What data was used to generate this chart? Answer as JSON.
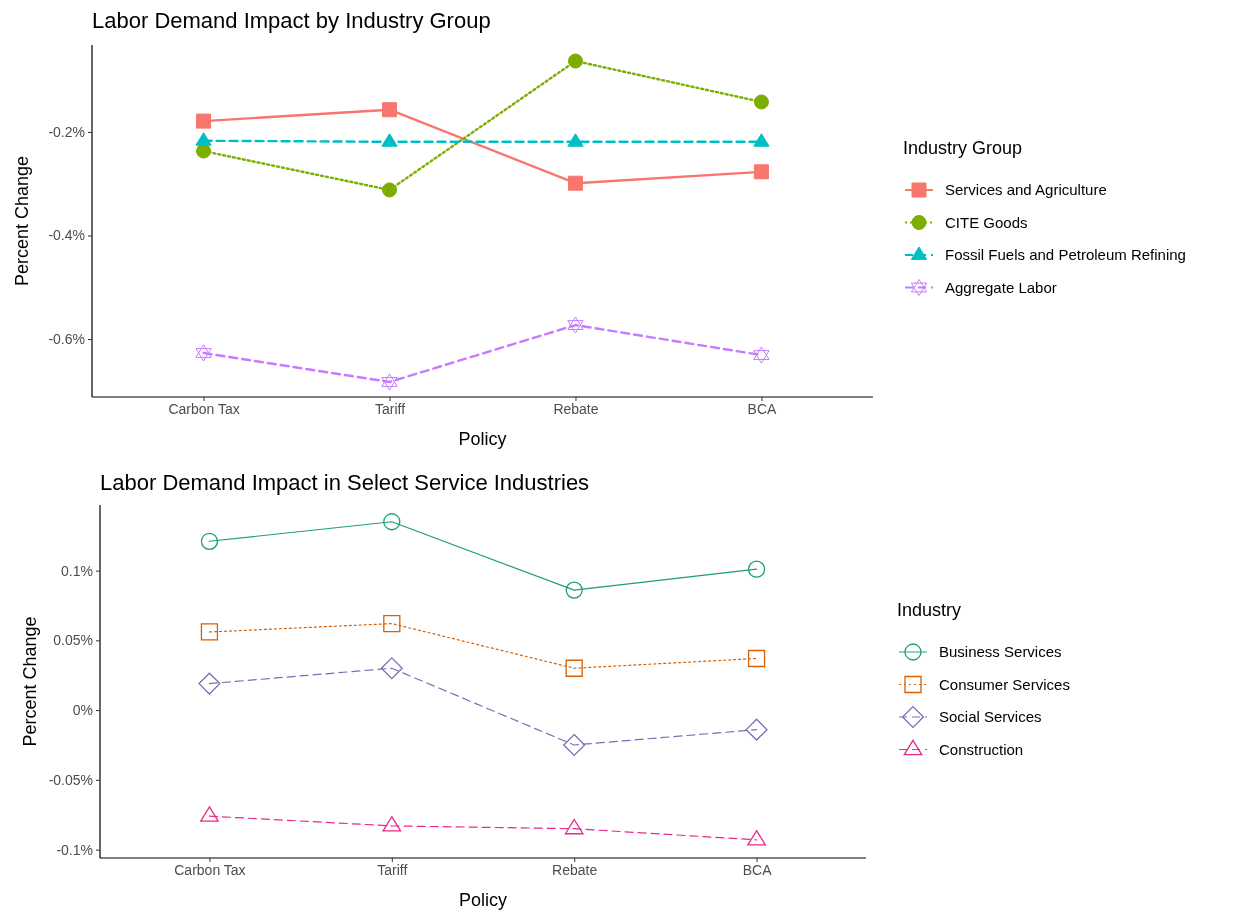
{
  "chart_data": [
    {
      "type": "line",
      "title": "Labor Demand Impact by Industry Group",
      "xlabel": "Policy",
      "ylabel": "Percent Change",
      "legend_title": "Industry Group",
      "legend": "right",
      "grid": false,
      "categories": [
        "Carbon Tax",
        "Tariff",
        "Rebate",
        "BCA"
      ],
      "ylim": [
        -0.712,
        -0.032
      ],
      "yticks": [
        {
          "value": -0.6,
          "label": "-0.6%"
        },
        {
          "value": -0.4,
          "label": "-0.4%"
        },
        {
          "value": -0.2,
          "label": "-0.2%"
        }
      ],
      "series": [
        {
          "name": "Services and Agriculture",
          "color": "#f8766d",
          "marker": "square",
          "line_style": "solid",
          "values": [
            -0.179,
            -0.157,
            -0.299,
            -0.277
          ]
        },
        {
          "name": "CITE Goods",
          "color": "#7cae00",
          "marker": "circle",
          "line_style": "dotted",
          "values": [
            -0.237,
            -0.312,
            -0.063,
            -0.142
          ]
        },
        {
          "name": "Fossil Fuels and Petroleum Refining",
          "color": "#00bfc4",
          "marker": "triangle",
          "line_style": "dashed",
          "values": [
            -0.217,
            -0.219,
            -0.219,
            -0.219
          ]
        },
        {
          "name": "Aggregate Labor",
          "color": "#c77cff",
          "marker": "star",
          "line_style": "dashed",
          "values": [
            -0.627,
            -0.683,
            -0.573,
            -0.631
          ]
        }
      ]
    },
    {
      "type": "line",
      "title": "Labor Demand Impact in Select Service Industries",
      "xlabel": "Policy",
      "ylabel": "Percent Change",
      "legend_title": "Industry",
      "legend": "right",
      "grid": false,
      "categories": [
        "Carbon Tax",
        "Tariff",
        "Rebate",
        "BCA"
      ],
      "ylim": [
        -0.106,
        0.147
      ],
      "yticks": [
        {
          "value": -0.1,
          "label": "-0.1%"
        },
        {
          "value": -0.05,
          "label": "-0.05%"
        },
        {
          "value": 0,
          "label": "0%"
        },
        {
          "value": 0.05,
          "label": "0.05%"
        },
        {
          "value": 0.1,
          "label": "0.1%"
        }
      ],
      "series": [
        {
          "name": "Business Services",
          "color": "#1b9e77",
          "marker": "circle",
          "line_style": "solid",
          "values": [
            0.121,
            0.135,
            0.086,
            0.101
          ]
        },
        {
          "name": "Consumer Services",
          "color": "#d95f02",
          "marker": "square",
          "line_style": "dotted",
          "values": [
            0.056,
            0.062,
            0.03,
            0.037
          ]
        },
        {
          "name": "Social Services",
          "color": "#7570b3",
          "marker": "diamond",
          "line_style": "dashed",
          "values": [
            0.019,
            0.03,
            -0.025,
            -0.014
          ]
        },
        {
          "name": "Construction",
          "color": "#e7298a",
          "marker": "triangle",
          "line_style": "dashed",
          "values": [
            -0.076,
            -0.083,
            -0.085,
            -0.093
          ]
        }
      ]
    }
  ]
}
